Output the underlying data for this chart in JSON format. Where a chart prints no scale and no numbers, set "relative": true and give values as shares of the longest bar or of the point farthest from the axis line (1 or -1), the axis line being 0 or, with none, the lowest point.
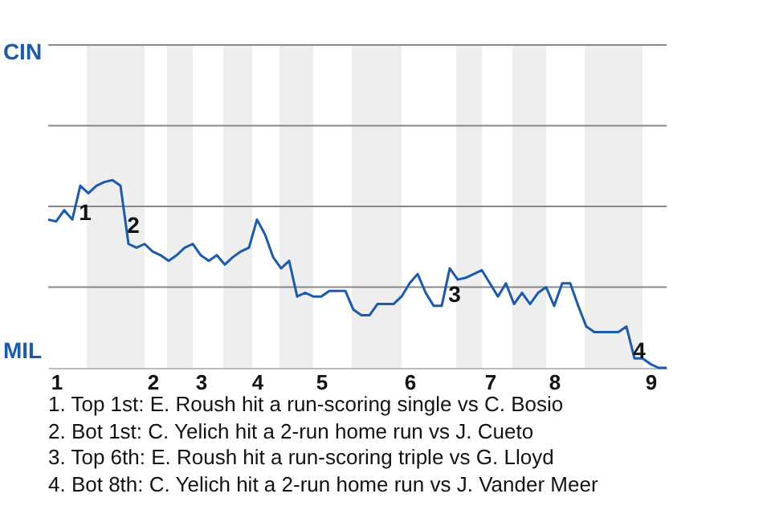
{
  "chart_data": {
    "type": "line",
    "relative": true,
    "categories": [
      null,
      "1",
      null,
      null,
      null,
      null,
      null,
      null,
      null,
      null,
      null,
      null,
      null,
      "2",
      null,
      null,
      null,
      null,
      null,
      "3",
      null,
      null,
      null,
      null,
      null,
      null,
      "4",
      null,
      null,
      null,
      null,
      null,
      null,
      null,
      "5",
      null,
      null,
      null,
      null,
      null,
      null,
      null,
      null,
      null,
      null,
      "6",
      null,
      null,
      null,
      null,
      null,
      null,
      null,
      null,
      null,
      "7",
      null,
      null,
      null,
      null,
      null,
      null,
      null,
      "8",
      null,
      null,
      null,
      null,
      null,
      null,
      null,
      null,
      null,
      null,
      null,
      "9",
      null,
      null
    ],
    "series": [
      {
        "color": "#1a5ab0",
        "values": [
          0.79,
          0.78,
          0.84,
          0.79,
          0.97,
          0.93,
          0.97,
          0.99,
          1,
          0.97,
          0.66,
          0.64,
          0.66,
          0.62,
          0.6,
          0.57,
          0.6,
          0.64,
          0.66,
          0.6,
          0.57,
          0.6,
          0.55,
          0.59,
          0.62,
          0.64,
          0.79,
          0.71,
          0.59,
          0.53,
          0.57,
          0.38,
          0.4,
          0.38,
          0.38,
          0.41,
          0.41,
          0.41,
          0.31,
          0.28,
          0.28,
          0.34,
          0.34,
          0.34,
          0.38,
          0.45,
          0.5,
          0.4,
          0.33,
          0.33,
          0.53,
          0.47,
          0.48,
          0.5,
          0.52,
          0.45,
          0.38,
          0.45,
          0.34,
          0.4,
          0.34,
          0.4,
          0.43,
          0.33,
          0.45,
          0.45,
          0.33,
          0.22,
          0.19,
          0.19,
          0.19,
          0.19,
          0.22,
          0.05,
          0.05,
          0.02,
          0,
          0
        ]
      }
    ],
    "ref_lines": [
      {
        "axis": "y",
        "value": 0.43,
        "color": "#888888"
      },
      {
        "axis": "y",
        "value": 0.86,
        "color": "#888888"
      },
      {
        "axis": "y",
        "value": 1.29,
        "color": "#888888"
      },
      {
        "axis": "y",
        "value": 1.72,
        "color": "#888888"
      }
    ],
    "annotations": [
      "CIN",
      "MIL",
      "1",
      "2",
      "3",
      "4",
      "1. Top 1st: E. Roush hit a run-scoring single vs C. Bosio",
      "2. Bot 1st: C. Yelich hit a 2-run home run vs J. Cueto",
      "3. Top 6th: E. Roush hit a run-scoring triple vs G. Lloyd",
      "4. Bot 8th: C. Yelich hit a 2-run home run vs J. Vander Meer"
    ]
  }
}
